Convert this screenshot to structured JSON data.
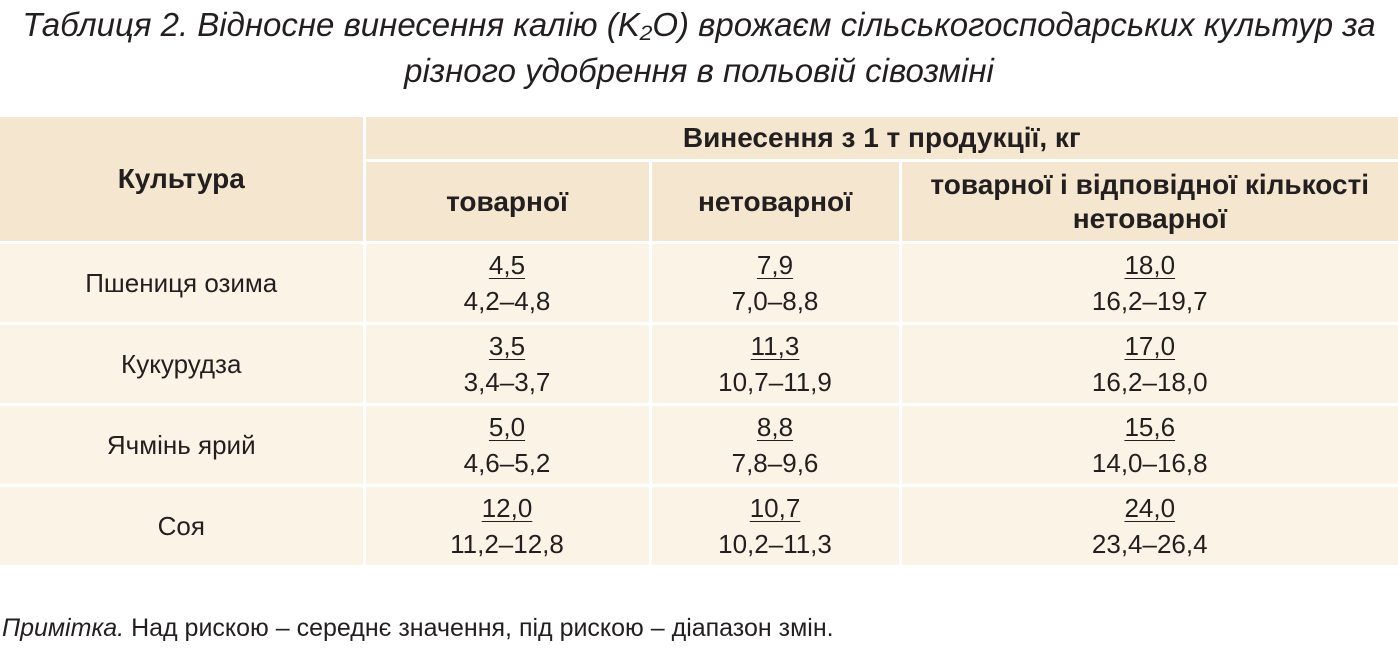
{
  "header": {
    "title": "Таблиця 2. Відносне винесення калію (K₂O) врожаєм сільськогосподарських культур за різного удобрення в польовій сівозміні"
  },
  "table": {
    "header": {
      "crop": "Культура",
      "group": "Винесення з 1 т продукції, кг",
      "columns": [
        "товарної",
        "нетоварної",
        "товарної і відповідної кількості нетоварної"
      ]
    },
    "rows": [
      {
        "crop": "Пшениця озима",
        "cells": [
          {
            "mean": "4,5",
            "range": "4,2–4,8"
          },
          {
            "mean": "7,9",
            "range": "7,0–8,8"
          },
          {
            "mean": "18,0",
            "range": "16,2–19,7"
          }
        ]
      },
      {
        "crop": "Кукурудза",
        "cells": [
          {
            "mean": "3,5",
            "range": "3,4–3,7"
          },
          {
            "mean": "11,3",
            "range": "10,7–11,9"
          },
          {
            "mean": "17,0",
            "range": "16,2–18,0"
          }
        ]
      },
      {
        "crop": "Ячмінь ярий",
        "cells": [
          {
            "mean": "5,0",
            "range": "4,6–5,2"
          },
          {
            "mean": "8,8",
            "range": "7,8–9,6"
          },
          {
            "mean": "15,6",
            "range": "14,0–16,8"
          }
        ]
      },
      {
        "crop": "Соя",
        "cells": [
          {
            "mean": "12,0",
            "range": "11,2–12,8"
          },
          {
            "mean": "10,7",
            "range": "10,2–11,3"
          },
          {
            "mean": "24,0",
            "range": "23,4–26,4"
          }
        ]
      }
    ]
  },
  "note": {
    "label": "Примітка.",
    "text": "Над рискою – середнє значення, під рискою – діапазон змін."
  }
}
